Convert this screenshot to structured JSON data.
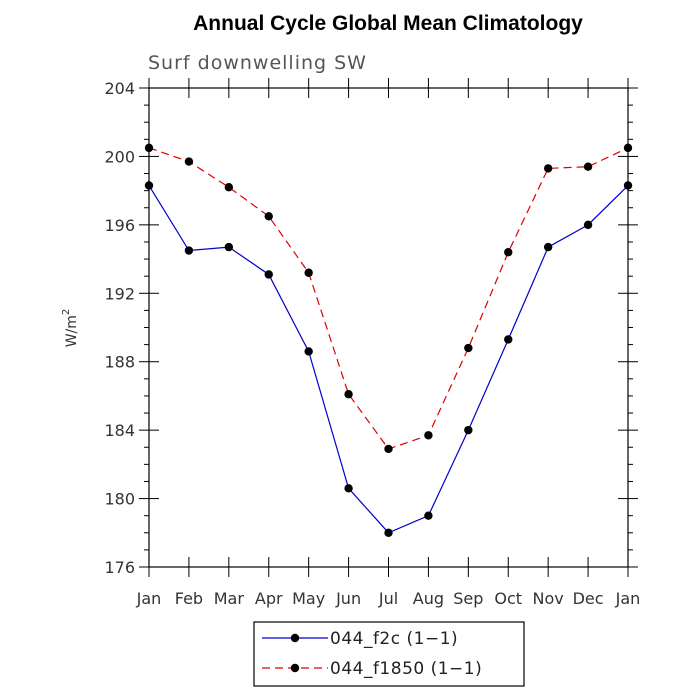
{
  "chart_data": {
    "type": "line",
    "title": "Annual Cycle Global Mean Climatology",
    "subtitle": "Surf downwelling SW",
    "xlabel": "",
    "ylabel": "W/m",
    "ylabel_superscript": "2",
    "categories": [
      "Jan",
      "Feb",
      "Mar",
      "Apr",
      "May",
      "Jun",
      "Jul",
      "Aug",
      "Sep",
      "Oct",
      "Nov",
      "Dec",
      "Jan"
    ],
    "ylim": [
      176,
      204
    ],
    "yticks": [
      176,
      180,
      184,
      188,
      192,
      196,
      200,
      204
    ],
    "grid": false,
    "legend_position": "bottom",
    "series": [
      {
        "name": "044_f2c (1−1)",
        "color": "#0000cc",
        "line_style": "solid",
        "marker": "filled-circle",
        "values": [
          198.3,
          194.5,
          194.7,
          193.1,
          188.6,
          180.6,
          178.0,
          179.0,
          184.0,
          189.3,
          194.7,
          196.0,
          198.3
        ]
      },
      {
        "name": "044_f1850 (1−1)",
        "color": "#dd0000",
        "line_style": "dashed",
        "marker": "filled-circle",
        "values": [
          200.5,
          199.7,
          198.2,
          196.5,
          193.2,
          186.1,
          182.9,
          183.7,
          188.8,
          194.4,
          199.3,
          199.4,
          200.5
        ]
      }
    ]
  }
}
